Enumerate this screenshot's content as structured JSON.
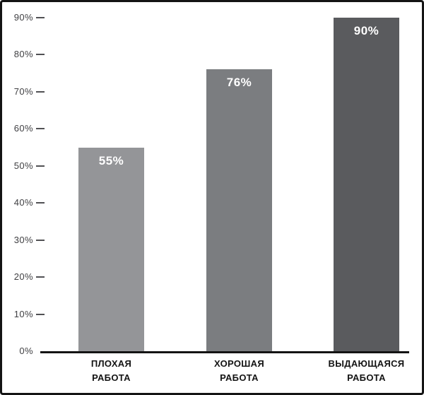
{
  "chart_data": {
    "type": "bar",
    "title": "",
    "categories": [
      "ПЛОХАЯ РАБОТА",
      "ХОРОШАЯ РАБОТА",
      "ВЫДАЮЩАЯСЯ РАБОТА"
    ],
    "category_lines": [
      [
        "ПЛОХАЯ",
        "РАБОТА"
      ],
      [
        "ХОРОШАЯ",
        "РАБОТА"
      ],
      [
        "ВЫДАЮЩАЯСЯ",
        "РАБОТА"
      ]
    ],
    "values": [
      55,
      76,
      90
    ],
    "value_labels": [
      "55%",
      "76%",
      "90%"
    ],
    "bar_colors": [
      "#949598",
      "#7b7d80",
      "#5a5b5e"
    ],
    "xlabel": "",
    "ylabel": "",
    "ylim": [
      0,
      90
    ],
    "yticks": [
      0,
      10,
      20,
      30,
      40,
      50,
      60,
      70,
      80,
      90
    ],
    "ytick_labels": [
      "0%",
      "10%",
      "20%",
      "30%",
      "40%",
      "50%",
      "60%",
      "70%",
      "80%",
      "90%"
    ],
    "grid": false,
    "legend": "none"
  },
  "style": {
    "background": "#ffffff",
    "border_color": "#141414",
    "axis_line_color": "#141414",
    "tick_label_color": "#404043",
    "tick_dash_color": "#515154",
    "value_label_color": "#ffffff",
    "category_label_color": "#141414"
  }
}
